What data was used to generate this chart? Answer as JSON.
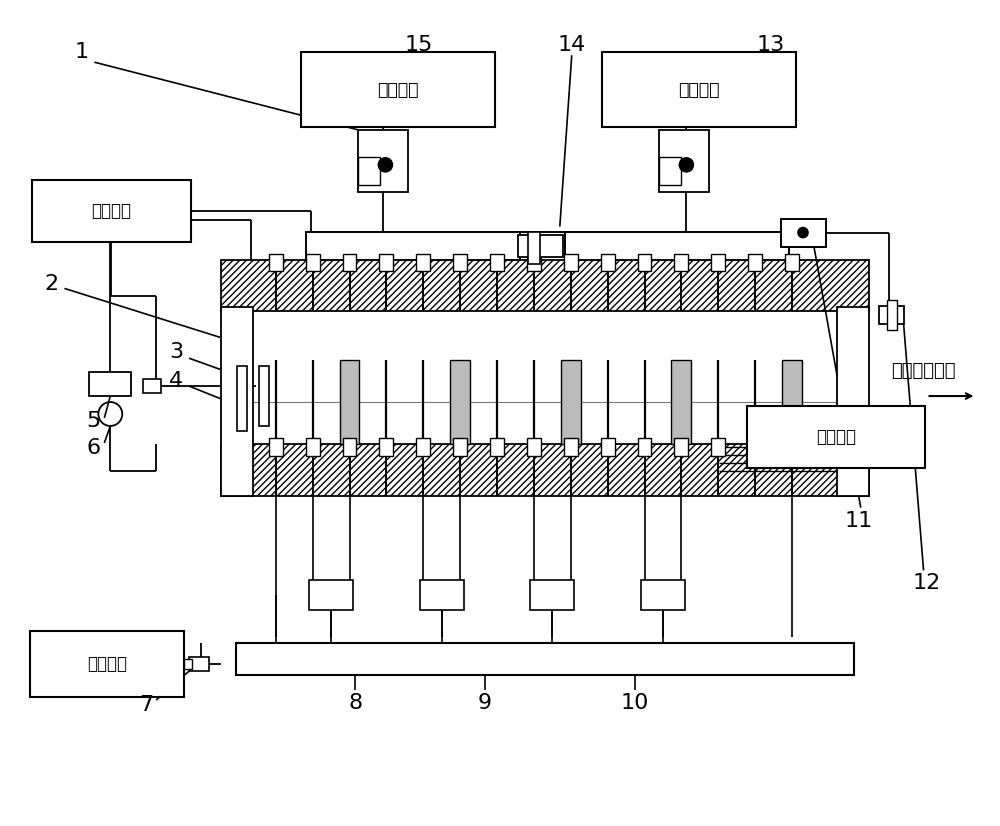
{
  "bg_color": "#ffffff",
  "lc": "#000000",
  "labels": {
    "ethanol": "乙醇储备",
    "pentane": "戊烷储备",
    "pressure": "压力单元",
    "temperature": "温度单元",
    "oxygen": "氧气储备",
    "flow": "废气流动方向"
  }
}
